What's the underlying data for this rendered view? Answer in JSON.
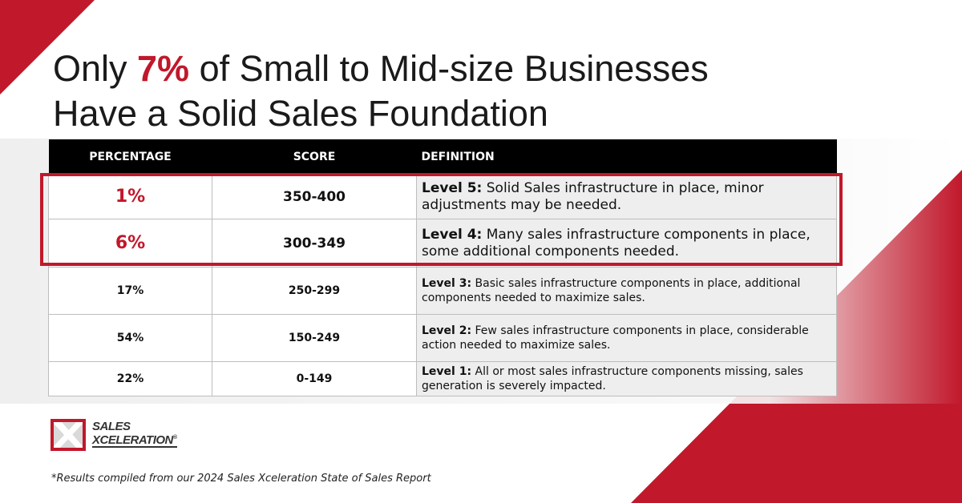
{
  "colors": {
    "brand_red": "#c1182b",
    "header_bg": "#000000",
    "def_bg": "#eeeeee"
  },
  "title": {
    "line1_pre": "Only ",
    "line1_highlight": "7%",
    "line1_post": " of Small to Mid-size Businesses",
    "line2": "Have a Solid Sales Foundation"
  },
  "table": {
    "headers": {
      "percentage": "PERCENTAGE",
      "score": "SCORE",
      "definition": "DEFINITION"
    },
    "rows": [
      {
        "percentage": "1%",
        "score": "350-400",
        "level": "Level 5:",
        "definition": " Solid Sales infrastructure in place, minor adjustments may be needed."
      },
      {
        "percentage": "6%",
        "score": "300-349",
        "level": "Level 4:",
        "definition": " Many sales infrastructure components in place, some additional components needed."
      },
      {
        "percentage": "17%",
        "score": "250-299",
        "level": "Level 3:",
        "definition": " Basic sales infrastructure components in place, additional components needed to maximize sales."
      },
      {
        "percentage": "54%",
        "score": "150-249",
        "level": "Level 2:",
        "definition": " Few sales infrastructure components in place, considerable action needed to maximize sales."
      },
      {
        "percentage": "22%",
        "score": "0-149",
        "level": "Level 1:",
        "definition": " All or most sales infrastructure components missing, sales generation is severely impacted."
      }
    ]
  },
  "logo": {
    "line1": "SALES",
    "line2": "XCELERATION",
    "mark": "®"
  },
  "footnote": "*Results compiled from our 2024 Sales Xceleration State of Sales Report"
}
